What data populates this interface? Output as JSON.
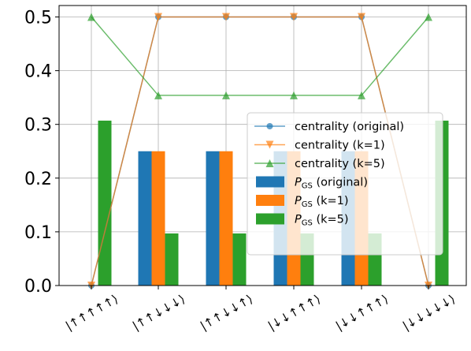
{
  "chart_data": {
    "type": "bar",
    "categories": [
      "|↑↑↑↑↑⟩",
      "|↑↑↓↓↓⟩",
      "|↑↑↓↓↑⟩",
      "|↓↓↑↑↑⟩",
      "|↓↓↑↑↑⟩",
      "|↓↓↓↓↓⟩"
    ],
    "ylim": [
      0,
      0.52
    ],
    "yticks": [
      0.0,
      0.1,
      0.2,
      0.3,
      0.4,
      0.5
    ],
    "ytick_labels": [
      "0.0",
      "0.1",
      "0.2",
      "0.3",
      "0.4",
      "0.5"
    ],
    "grid": true,
    "legend_position": "center-right",
    "bar_series": [
      {
        "name": "P_GS (original)",
        "label_main": "P",
        "label_sub": "GS",
        "label_rest": " (original)",
        "color": "#1f77b4",
        "values": [
          0.0,
          0.25,
          0.25,
          0.25,
          0.25,
          0.0
        ]
      },
      {
        "name": "P_GS (k=1)",
        "label_main": "P",
        "label_sub": "GS",
        "label_rest": " (k=1)",
        "color": "#ff7f0e",
        "values": [
          0.0,
          0.25,
          0.25,
          0.25,
          0.25,
          0.0
        ]
      },
      {
        "name": "P_GS (k=5)",
        "label_main": "P",
        "label_sub": "GS",
        "label_rest": " (k=5)",
        "color": "#2ca02c",
        "values": [
          0.307,
          0.097,
          0.097,
          0.097,
          0.097,
          0.307
        ]
      }
    ],
    "line_series": [
      {
        "name": "centrality (original)",
        "color": "#1f77b4",
        "marker": "circle",
        "values": [
          0.0,
          0.5,
          0.5,
          0.5,
          0.5,
          0.0
        ]
      },
      {
        "name": "centrality (k=1)",
        "color": "#ff7f0e",
        "marker": "triangle-down",
        "values": [
          0.0,
          0.5,
          0.5,
          0.5,
          0.5,
          0.0
        ]
      },
      {
        "name": "centrality (k=5)",
        "color": "#2ca02c",
        "marker": "triangle-up",
        "values": [
          0.5,
          0.354,
          0.354,
          0.354,
          0.354,
          0.5
        ]
      }
    ]
  }
}
